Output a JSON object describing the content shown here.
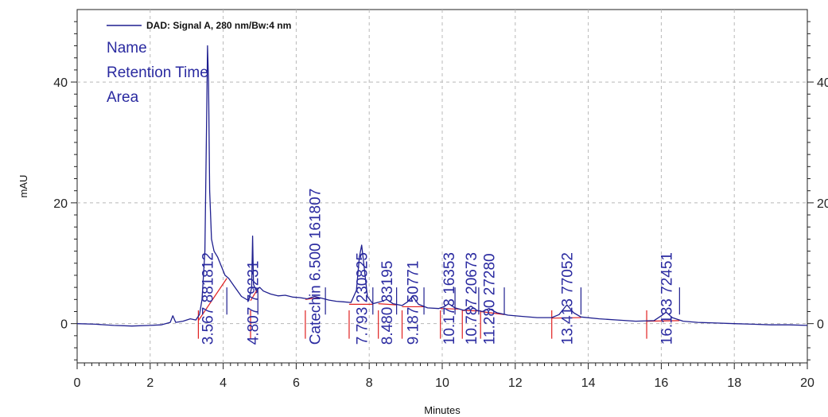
{
  "chart_data": {
    "type": "line",
    "legend_label": "DAD: Signal A, 280 nm/Bw:4 nm",
    "info_lines": [
      "Name",
      "Retention Time",
      "Area"
    ],
    "xlabel": "Minutes",
    "ylabel": "mAU",
    "xlim": [
      0,
      20
    ],
    "ylim": [
      -6.5,
      52
    ],
    "x_ticks": [
      0,
      2,
      4,
      6,
      8,
      10,
      12,
      14,
      16,
      18,
      20
    ],
    "y_ticks": [
      0,
      20,
      40
    ],
    "grid": true,
    "colors": {
      "signal": "#1f1f8f",
      "baseline": "#e02020",
      "labels": "#2a2aa0",
      "grid": "#b8b8b8"
    },
    "signal": [
      [
        0.0,
        0.0
      ],
      [
        0.5,
        -0.1
      ],
      [
        1.0,
        -0.3
      ],
      [
        1.5,
        -0.4
      ],
      [
        2.0,
        -0.3
      ],
      [
        2.3,
        -0.2
      ],
      [
        2.55,
        0.2
      ],
      [
        2.62,
        1.3
      ],
      [
        2.7,
        0.2
      ],
      [
        2.9,
        0.4
      ],
      [
        3.1,
        0.8
      ],
      [
        3.25,
        0.6
      ],
      [
        3.35,
        1.5
      ],
      [
        3.42,
        4.0
      ],
      [
        3.5,
        12.0
      ],
      [
        3.55,
        35.0
      ],
      [
        3.57,
        46.0
      ],
      [
        3.6,
        40.0
      ],
      [
        3.63,
        22.0
      ],
      [
        3.68,
        14.0
      ],
      [
        3.75,
        12.0
      ],
      [
        3.85,
        11.0
      ],
      [
        3.95,
        9.5
      ],
      [
        4.05,
        8.0
      ],
      [
        4.15,
        7.5
      ],
      [
        4.3,
        6.2
      ],
      [
        4.5,
        4.5
      ],
      [
        4.7,
        3.8
      ],
      [
        4.78,
        6.0
      ],
      [
        4.807,
        14.5
      ],
      [
        4.83,
        6.5
      ],
      [
        4.9,
        5.5
      ],
      [
        5.0,
        6.0
      ],
      [
        5.1,
        5.4
      ],
      [
        5.3,
        4.9
      ],
      [
        5.5,
        4.6
      ],
      [
        5.7,
        4.7
      ],
      [
        5.9,
        4.4
      ],
      [
        6.1,
        4.3
      ],
      [
        6.3,
        4.1
      ],
      [
        6.5,
        4.5
      ],
      [
        6.7,
        4.2
      ],
      [
        6.9,
        3.9
      ],
      [
        7.1,
        3.7
      ],
      [
        7.3,
        3.6
      ],
      [
        7.5,
        3.5
      ],
      [
        7.65,
        5.5
      ],
      [
        7.73,
        11.0
      ],
      [
        7.793,
        13.0
      ],
      [
        7.85,
        10.0
      ],
      [
        7.95,
        4.5
      ],
      [
        8.1,
        3.3
      ],
      [
        8.3,
        3.6
      ],
      [
        8.48,
        4.0
      ],
      [
        8.65,
        3.3
      ],
      [
        8.9,
        3.0
      ],
      [
        9.05,
        3.6
      ],
      [
        9.187,
        4.5
      ],
      [
        9.35,
        3.2
      ],
      [
        9.6,
        2.6
      ],
      [
        9.9,
        2.5
      ],
      [
        10.05,
        2.8
      ],
      [
        10.173,
        3.3
      ],
      [
        10.35,
        2.6
      ],
      [
        10.6,
        2.2
      ],
      [
        10.787,
        2.9
      ],
      [
        10.95,
        2.2
      ],
      [
        11.1,
        2.0
      ],
      [
        11.28,
        2.5
      ],
      [
        11.5,
        1.8
      ],
      [
        11.8,
        1.4
      ],
      [
        12.2,
        1.2
      ],
      [
        12.6,
        1.0
      ],
      [
        13.0,
        1.0
      ],
      [
        13.2,
        1.5
      ],
      [
        13.413,
        3.1
      ],
      [
        13.6,
        1.8
      ],
      [
        13.8,
        1.1
      ],
      [
        14.3,
        0.8
      ],
      [
        14.8,
        0.6
      ],
      [
        15.3,
        0.4
      ],
      [
        15.8,
        0.5
      ],
      [
        16.0,
        1.3
      ],
      [
        16.133,
        1.9
      ],
      [
        16.3,
        1.0
      ],
      [
        16.6,
        0.4
      ],
      [
        17.0,
        0.2
      ],
      [
        17.5,
        0.1
      ],
      [
        18.0,
        0.0
      ],
      [
        18.5,
        -0.1
      ],
      [
        19.0,
        -0.2
      ],
      [
        19.5,
        -0.2
      ],
      [
        20.0,
        -0.3
      ]
    ],
    "baselines": [
      [
        [
          3.32,
          0.5
        ],
        [
          4.1,
          7.5
        ]
      ],
      [
        [
          4.75,
          3.8
        ],
        [
          4.95,
          5.8
        ]
      ],
      [
        [
          6.25,
          4.0
        ],
        [
          6.6,
          4.3
        ]
      ],
      [
        [
          7.45,
          3.2
        ],
        [
          8.1,
          3.2
        ]
      ],
      [
        [
          8.25,
          3.3
        ],
        [
          8.75,
          3.1
        ]
      ],
      [
        [
          8.9,
          2.8
        ],
        [
          9.5,
          2.8
        ]
      ],
      [
        [
          9.95,
          2.5
        ],
        [
          10.5,
          2.4
        ]
      ],
      [
        [
          10.55,
          2.2
        ],
        [
          11.0,
          2.1
        ]
      ],
      [
        [
          11.05,
          2.0
        ],
        [
          11.7,
          1.5
        ]
      ],
      [
        [
          13.0,
          0.9
        ],
        [
          13.8,
          1.0
        ]
      ],
      [
        [
          15.6,
          0.4
        ],
        [
          16.5,
          0.5
        ]
      ]
    ],
    "down_markers": [
      3.32,
      4.75,
      6.25,
      7.45,
      8.25,
      8.9,
      9.95,
      10.55,
      11.05,
      13.0,
      15.6
    ],
    "up_markers": [
      4.1,
      4.95,
      6.8,
      8.1,
      8.75,
      9.5,
      10.35,
      11.0,
      11.7,
      13.8,
      16.5
    ],
    "peak_labels": [
      {
        "x": 3.567,
        "text": "3.567  881812"
      },
      {
        "x": 4.807,
        "text": "4.807  79231"
      },
      {
        "x": 6.5,
        "text": "Catechin  6.500  161807"
      },
      {
        "x": 7.793,
        "text": "7.793  230825"
      },
      {
        "x": 8.48,
        "text": "8.480  33195"
      },
      {
        "x": 9.187,
        "text": "9.187  50771"
      },
      {
        "x": 10.173,
        "text": "10.173  16353"
      },
      {
        "x": 10.787,
        "text": "10.787  20673"
      },
      {
        "x": 11.28,
        "text": "11.280  27280"
      },
      {
        "x": 13.413,
        "text": "13.413  77052"
      },
      {
        "x": 16.133,
        "text": "16.133  72451"
      }
    ]
  }
}
